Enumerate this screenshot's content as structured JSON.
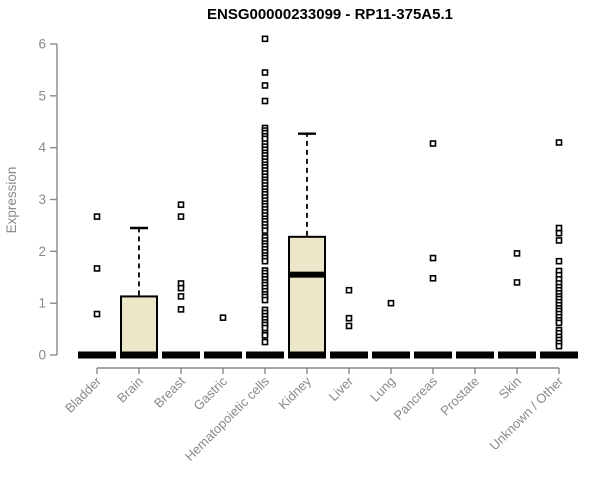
{
  "chart_data": {
    "type": "boxplot",
    "title": "ENSG00000233099 - RP11-375A5.1",
    "ylabel": "Expression",
    "xlabel": "",
    "ylim": [
      0,
      6
    ],
    "yticks": [
      0,
      1,
      2,
      3,
      4,
      5,
      6
    ],
    "grid": false,
    "legend": "none",
    "colors": {
      "box_fill": "#EDE7C9",
      "box_stroke": "#000000",
      "median": "#000000",
      "whisker": "#000000",
      "axis": "#888888",
      "tick_label": "#8A8A8A",
      "title": "#000000",
      "outlier_fill": "#FFFFFF",
      "outlier_stroke": "#000000"
    },
    "categories": [
      "Bladder",
      "Brain",
      "Breast",
      "Gastric",
      "Hematopoietic cells",
      "Kidney",
      "Liver",
      "Lung",
      "Pancreas",
      "Prostate",
      "Skin",
      "Unknown / Other"
    ],
    "boxes": [
      {
        "category": "Bladder",
        "whisker_low": 0,
        "q1": 0,
        "median": 0,
        "q3": 0,
        "whisker_high": 0,
        "outliers": [
          2.67,
          1.67,
          0.79
        ]
      },
      {
        "category": "Brain",
        "whisker_low": 0,
        "q1": 0,
        "median": 0,
        "q3": 1.13,
        "whisker_high": 2.45,
        "outliers": []
      },
      {
        "category": "Breast",
        "whisker_low": 0,
        "q1": 0,
        "median": 0,
        "q3": 0,
        "whisker_high": 0,
        "outliers": [
          2.9,
          2.67,
          1.38,
          1.29,
          1.13,
          0.88
        ]
      },
      {
        "category": "Gastric",
        "whisker_low": 0,
        "q1": 0,
        "median": 0,
        "q3": 0,
        "whisker_high": 0,
        "outliers": [
          0.72
        ]
      },
      {
        "category": "Hematopoietic cells",
        "whisker_low": 0,
        "q1": 0,
        "median": 0,
        "q3": 0,
        "whisker_high": 0,
        "outliers": [
          6.1,
          5.45,
          5.2,
          4.9,
          4.38,
          4.33,
          4.28,
          4.22,
          4.17,
          4.08,
          4.02,
          3.96,
          3.9,
          3.85,
          3.79,
          3.73,
          3.67,
          3.62,
          3.56,
          3.5,
          3.44,
          3.38,
          3.33,
          3.27,
          3.21,
          3.15,
          3.1,
          3.04,
          2.98,
          2.92,
          2.87,
          2.81,
          2.75,
          2.69,
          2.63,
          2.58,
          2.52,
          2.46,
          2.4,
          2.27,
          2.21,
          2.15,
          2.1,
          2.04,
          1.98,
          1.92,
          1.87,
          1.81,
          1.63,
          1.58,
          1.52,
          1.46,
          1.4,
          1.35,
          1.29,
          1.23,
          1.17,
          1.12,
          1.06,
          0.87,
          0.81,
          0.75,
          0.69,
          0.63,
          0.58,
          0.52,
          0.42,
          0.38,
          0.25
        ]
      },
      {
        "category": "Kidney",
        "whisker_low": 0,
        "q1": 0,
        "median": 1.55,
        "q3": 2.28,
        "whisker_high": 4.27,
        "outliers": []
      },
      {
        "category": "Liver",
        "whisker_low": 0,
        "q1": 0,
        "median": 0,
        "q3": 0,
        "whisker_high": 0,
        "outliers": [
          1.25,
          0.71,
          0.56
        ]
      },
      {
        "category": "Lung",
        "whisker_low": 0,
        "q1": 0,
        "median": 0,
        "q3": 0,
        "whisker_high": 0,
        "outliers": [
          1.0
        ]
      },
      {
        "category": "Pancreas",
        "whisker_low": 0,
        "q1": 0,
        "median": 0,
        "q3": 0,
        "whisker_high": 0,
        "outliers": [
          4.08,
          1.87,
          1.48
        ]
      },
      {
        "category": "Prostate",
        "whisker_low": 0,
        "q1": 0,
        "median": 0,
        "q3": 0,
        "whisker_high": 0,
        "outliers": []
      },
      {
        "category": "Skin",
        "whisker_low": 0,
        "q1": 0,
        "median": 0,
        "q3": 0,
        "whisker_high": 0,
        "outliers": [
          1.96,
          1.4
        ]
      },
      {
        "category": "Unknown / Other",
        "whisker_low": 0,
        "q1": 0,
        "median": 0,
        "q3": 0,
        "whisker_high": 0,
        "outliers": [
          4.1,
          2.45,
          2.35,
          2.21,
          1.81,
          1.62,
          1.54,
          1.46,
          1.38,
          1.31,
          1.25,
          1.19,
          1.13,
          1.08,
          1.02,
          0.96,
          0.9,
          0.85,
          0.79,
          0.73,
          0.67,
          0.62,
          0.48,
          0.42,
          0.35,
          0.29,
          0.23,
          0.17
        ]
      }
    ]
  }
}
